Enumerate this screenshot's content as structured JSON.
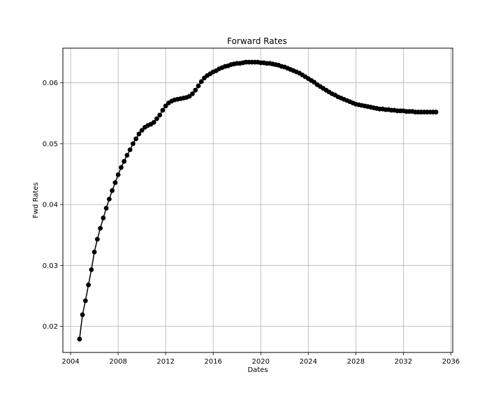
{
  "chart_data": {
    "type": "line",
    "title": "Forward Rates",
    "xlabel": "Dates",
    "ylabel": "Fwd Rates",
    "xlim": [
      2003.35,
      2036.15
    ],
    "ylim": [
      0.0157,
      0.0657
    ],
    "xticks": [
      2004,
      2008,
      2012,
      2016,
      2020,
      2024,
      2028,
      2032,
      2036
    ],
    "yticks": [
      0.02,
      0.03,
      0.04,
      0.05,
      0.06
    ],
    "ytick_labels": [
      "0.02",
      "0.03",
      "0.04",
      "0.05",
      "0.06"
    ],
    "grid": true,
    "line_color": "#000000",
    "marker": "circle",
    "series": [
      {
        "x": [
          2004.75,
          2005.0,
          2005.25,
          2005.5,
          2005.75,
          2006.0,
          2006.25,
          2006.5,
          2006.75,
          2007.0,
          2007.25,
          2007.5,
          2007.75,
          2008.0,
          2008.25,
          2008.5,
          2008.75,
          2009.0,
          2009.25,
          2009.5,
          2009.75,
          2010.0,
          2010.25,
          2010.5,
          2010.75,
          2011.0,
          2011.25,
          2011.5,
          2011.75,
          2012.0,
          2012.25,
          2012.5,
          2012.75,
          2013.0,
          2013.25,
          2013.5,
          2013.75,
          2014.0,
          2014.25,
          2014.5,
          2014.75,
          2015.0,
          2015.25,
          2015.5,
          2015.75,
          2016.0,
          2016.25,
          2016.5,
          2016.75,
          2017.0,
          2017.25,
          2017.5,
          2017.75,
          2018.0,
          2018.25,
          2018.5,
          2018.75,
          2019.0,
          2019.25,
          2019.5,
          2019.75,
          2020.0,
          2020.25,
          2020.5,
          2020.75,
          2021.0,
          2021.25,
          2021.5,
          2021.75,
          2022.0,
          2022.25,
          2022.5,
          2022.75,
          2023.0,
          2023.25,
          2023.5,
          2023.75,
          2024.0,
          2024.25,
          2024.5,
          2024.75,
          2025.0,
          2025.25,
          2025.5,
          2025.75,
          2026.0,
          2026.25,
          2026.5,
          2026.75,
          2027.0,
          2027.25,
          2027.5,
          2027.75,
          2028.0,
          2028.25,
          2028.5,
          2028.75,
          2029.0,
          2029.25,
          2029.5,
          2029.75,
          2030.0,
          2030.25,
          2030.5,
          2030.75,
          2031.0,
          2031.25,
          2031.5,
          2031.75,
          2032.0,
          2032.25,
          2032.5,
          2032.75,
          2033.0,
          2033.25,
          2033.5,
          2033.75,
          2034.0,
          2034.25,
          2034.5,
          2034.75
        ],
        "y": [
          0.0179,
          0.0219,
          0.0242,
          0.0268,
          0.0293,
          0.0322,
          0.0343,
          0.0361,
          0.0378,
          0.0394,
          0.0409,
          0.0423,
          0.0436,
          0.0449,
          0.0461,
          0.0471,
          0.0481,
          0.049,
          0.05,
          0.0508,
          0.0516,
          0.0522,
          0.0527,
          0.053,
          0.0532,
          0.0535,
          0.0541,
          0.0547,
          0.0555,
          0.0562,
          0.0567,
          0.057,
          0.0572,
          0.0573,
          0.0574,
          0.0575,
          0.0576,
          0.0578,
          0.0582,
          0.0588,
          0.0595,
          0.0602,
          0.0608,
          0.0612,
          0.0615,
          0.0618,
          0.062,
          0.0623,
          0.0625,
          0.0627,
          0.0628,
          0.063,
          0.0631,
          0.0632,
          0.0632,
          0.0633,
          0.0634,
          0.0634,
          0.0634,
          0.0634,
          0.0634,
          0.0633,
          0.0633,
          0.0632,
          0.0632,
          0.0631,
          0.063,
          0.0629,
          0.0627,
          0.0626,
          0.0624,
          0.0622,
          0.062,
          0.0618,
          0.0616,
          0.0613,
          0.061,
          0.0607,
          0.0604,
          0.0601,
          0.0597,
          0.0594,
          0.0591,
          0.0588,
          0.0585,
          0.0582,
          0.058,
          0.0577,
          0.0575,
          0.0573,
          0.0571,
          0.0569,
          0.0567,
          0.0565,
          0.0564,
          0.0563,
          0.0562,
          0.0561,
          0.056,
          0.0559,
          0.0558,
          0.0557,
          0.0557,
          0.0556,
          0.0556,
          0.0555,
          0.0555,
          0.0554,
          0.0554,
          0.0554,
          0.0553,
          0.0553,
          0.0553,
          0.0552,
          0.0552,
          0.0552,
          0.0552,
          0.0552,
          0.0552,
          0.0552,
          0.0552
        ]
      }
    ]
  }
}
